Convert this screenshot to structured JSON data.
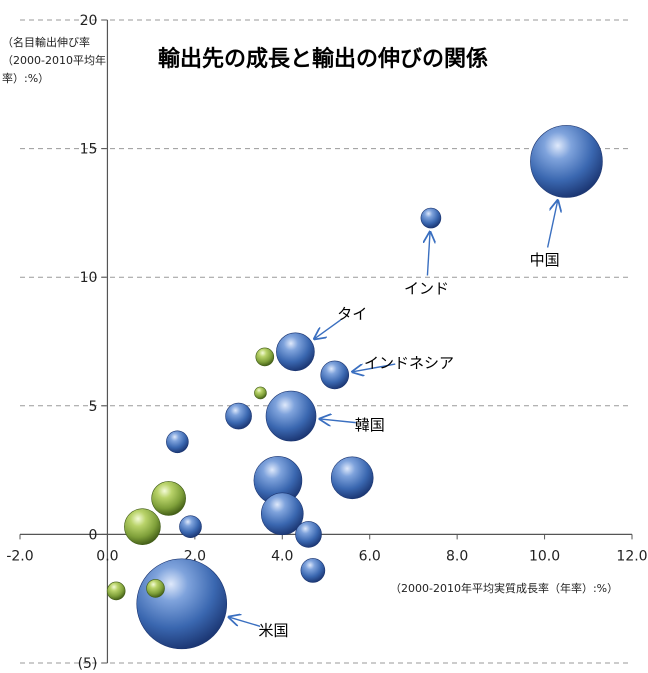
{
  "chart_data": {
    "type": "scatter",
    "title": "輸出先の成長と輸出の伸びの関係",
    "xlabel": "（2000-2010年平均実質成長率（年率）:%）",
    "ylabel_lines": [
      "（名目輸出伸び率",
      "（2000-2010平均年",
      "率）:%）"
    ],
    "xlim": [
      -2.0,
      12.0
    ],
    "ylim": [
      -5,
      20
    ],
    "x_ticks": [
      "-2.0",
      "0.0",
      "2.0",
      "4.0",
      "6.0",
      "8.0",
      "10.0",
      "12.0"
    ],
    "y_ticks": [
      {
        "value": 20,
        "label": "20"
      },
      {
        "value": 15,
        "label": "15"
      },
      {
        "value": 10,
        "label": "10"
      },
      {
        "value": 5,
        "label": "5"
      },
      {
        "value": 0,
        "label": "0"
      },
      {
        "value": -5,
        "label": "(5)"
      }
    ],
    "grid": "horizontal-dashed",
    "colors": {
      "blue": "#3a67b0",
      "green": "#7fa03a",
      "arrow": "#3a6fc0",
      "negative_tick": "#e00000"
    },
    "points": [
      {
        "name": "中国",
        "x": 10.5,
        "y": 14.5,
        "size": 36,
        "color": "blue"
      },
      {
        "name": "インド",
        "x": 7.4,
        "y": 12.3,
        "size": 10,
        "color": "blue"
      },
      {
        "name": "タイ",
        "x": 4.3,
        "y": 7.1,
        "size": 19,
        "color": "blue"
      },
      {
        "name": "インドネシア",
        "x": 5.2,
        "y": 6.2,
        "size": 14,
        "color": "blue"
      },
      {
        "name": "韓国",
        "x": 4.2,
        "y": 4.6,
        "size": 25,
        "color": "blue"
      },
      {
        "name": "米国",
        "x": 1.7,
        "y": -2.7,
        "size": 45,
        "color": "blue"
      },
      {
        "name": "",
        "x": 3.6,
        "y": 6.9,
        "size": 9,
        "color": "green"
      },
      {
        "name": "",
        "x": 3.5,
        "y": 5.5,
        "size": 6,
        "color": "green"
      },
      {
        "name": "",
        "x": 3.0,
        "y": 4.6,
        "size": 13,
        "color": "blue"
      },
      {
        "name": "",
        "x": 1.6,
        "y": 3.6,
        "size": 11,
        "color": "blue"
      },
      {
        "name": "",
        "x": 3.9,
        "y": 2.1,
        "size": 24,
        "color": "blue"
      },
      {
        "name": "",
        "x": 5.6,
        "y": 2.2,
        "size": 21,
        "color": "blue"
      },
      {
        "name": "",
        "x": 4.0,
        "y": 0.8,
        "size": 21,
        "color": "blue"
      },
      {
        "name": "",
        "x": 4.6,
        "y": 0.0,
        "size": 13,
        "color": "blue"
      },
      {
        "name": "",
        "x": 1.9,
        "y": 0.3,
        "size": 11,
        "color": "blue"
      },
      {
        "name": "",
        "x": 1.4,
        "y": 1.4,
        "size": 17,
        "color": "green"
      },
      {
        "name": "",
        "x": 0.8,
        "y": 0.3,
        "size": 18,
        "color": "green"
      },
      {
        "name": "",
        "x": 4.7,
        "y": -1.4,
        "size": 12,
        "color": "blue"
      },
      {
        "name": "",
        "x": 0.2,
        "y": -2.2,
        "size": 9,
        "color": "green"
      },
      {
        "name": "",
        "x": 1.1,
        "y": -2.1,
        "size": 9,
        "color": "green"
      }
    ],
    "annotations": [
      {
        "text": "中国",
        "point": "中国",
        "text_x": 10.0,
        "text_y": 10.7
      },
      {
        "text": "インド",
        "point": "インド",
        "text_x": 7.3,
        "text_y": 9.6
      },
      {
        "text": "タイ",
        "point": "タイ",
        "text_x": 5.6,
        "text_y": 8.6
      },
      {
        "text": "インドネシア",
        "point": "インドネシア",
        "text_x": 6.9,
        "text_y": 6.7
      },
      {
        "text": "韓国",
        "point": "韓国",
        "text_x": 6.0,
        "text_y": 4.3
      },
      {
        "text": "米国",
        "point": "米国",
        "text_x": 3.8,
        "text_y": -3.7
      }
    ]
  }
}
